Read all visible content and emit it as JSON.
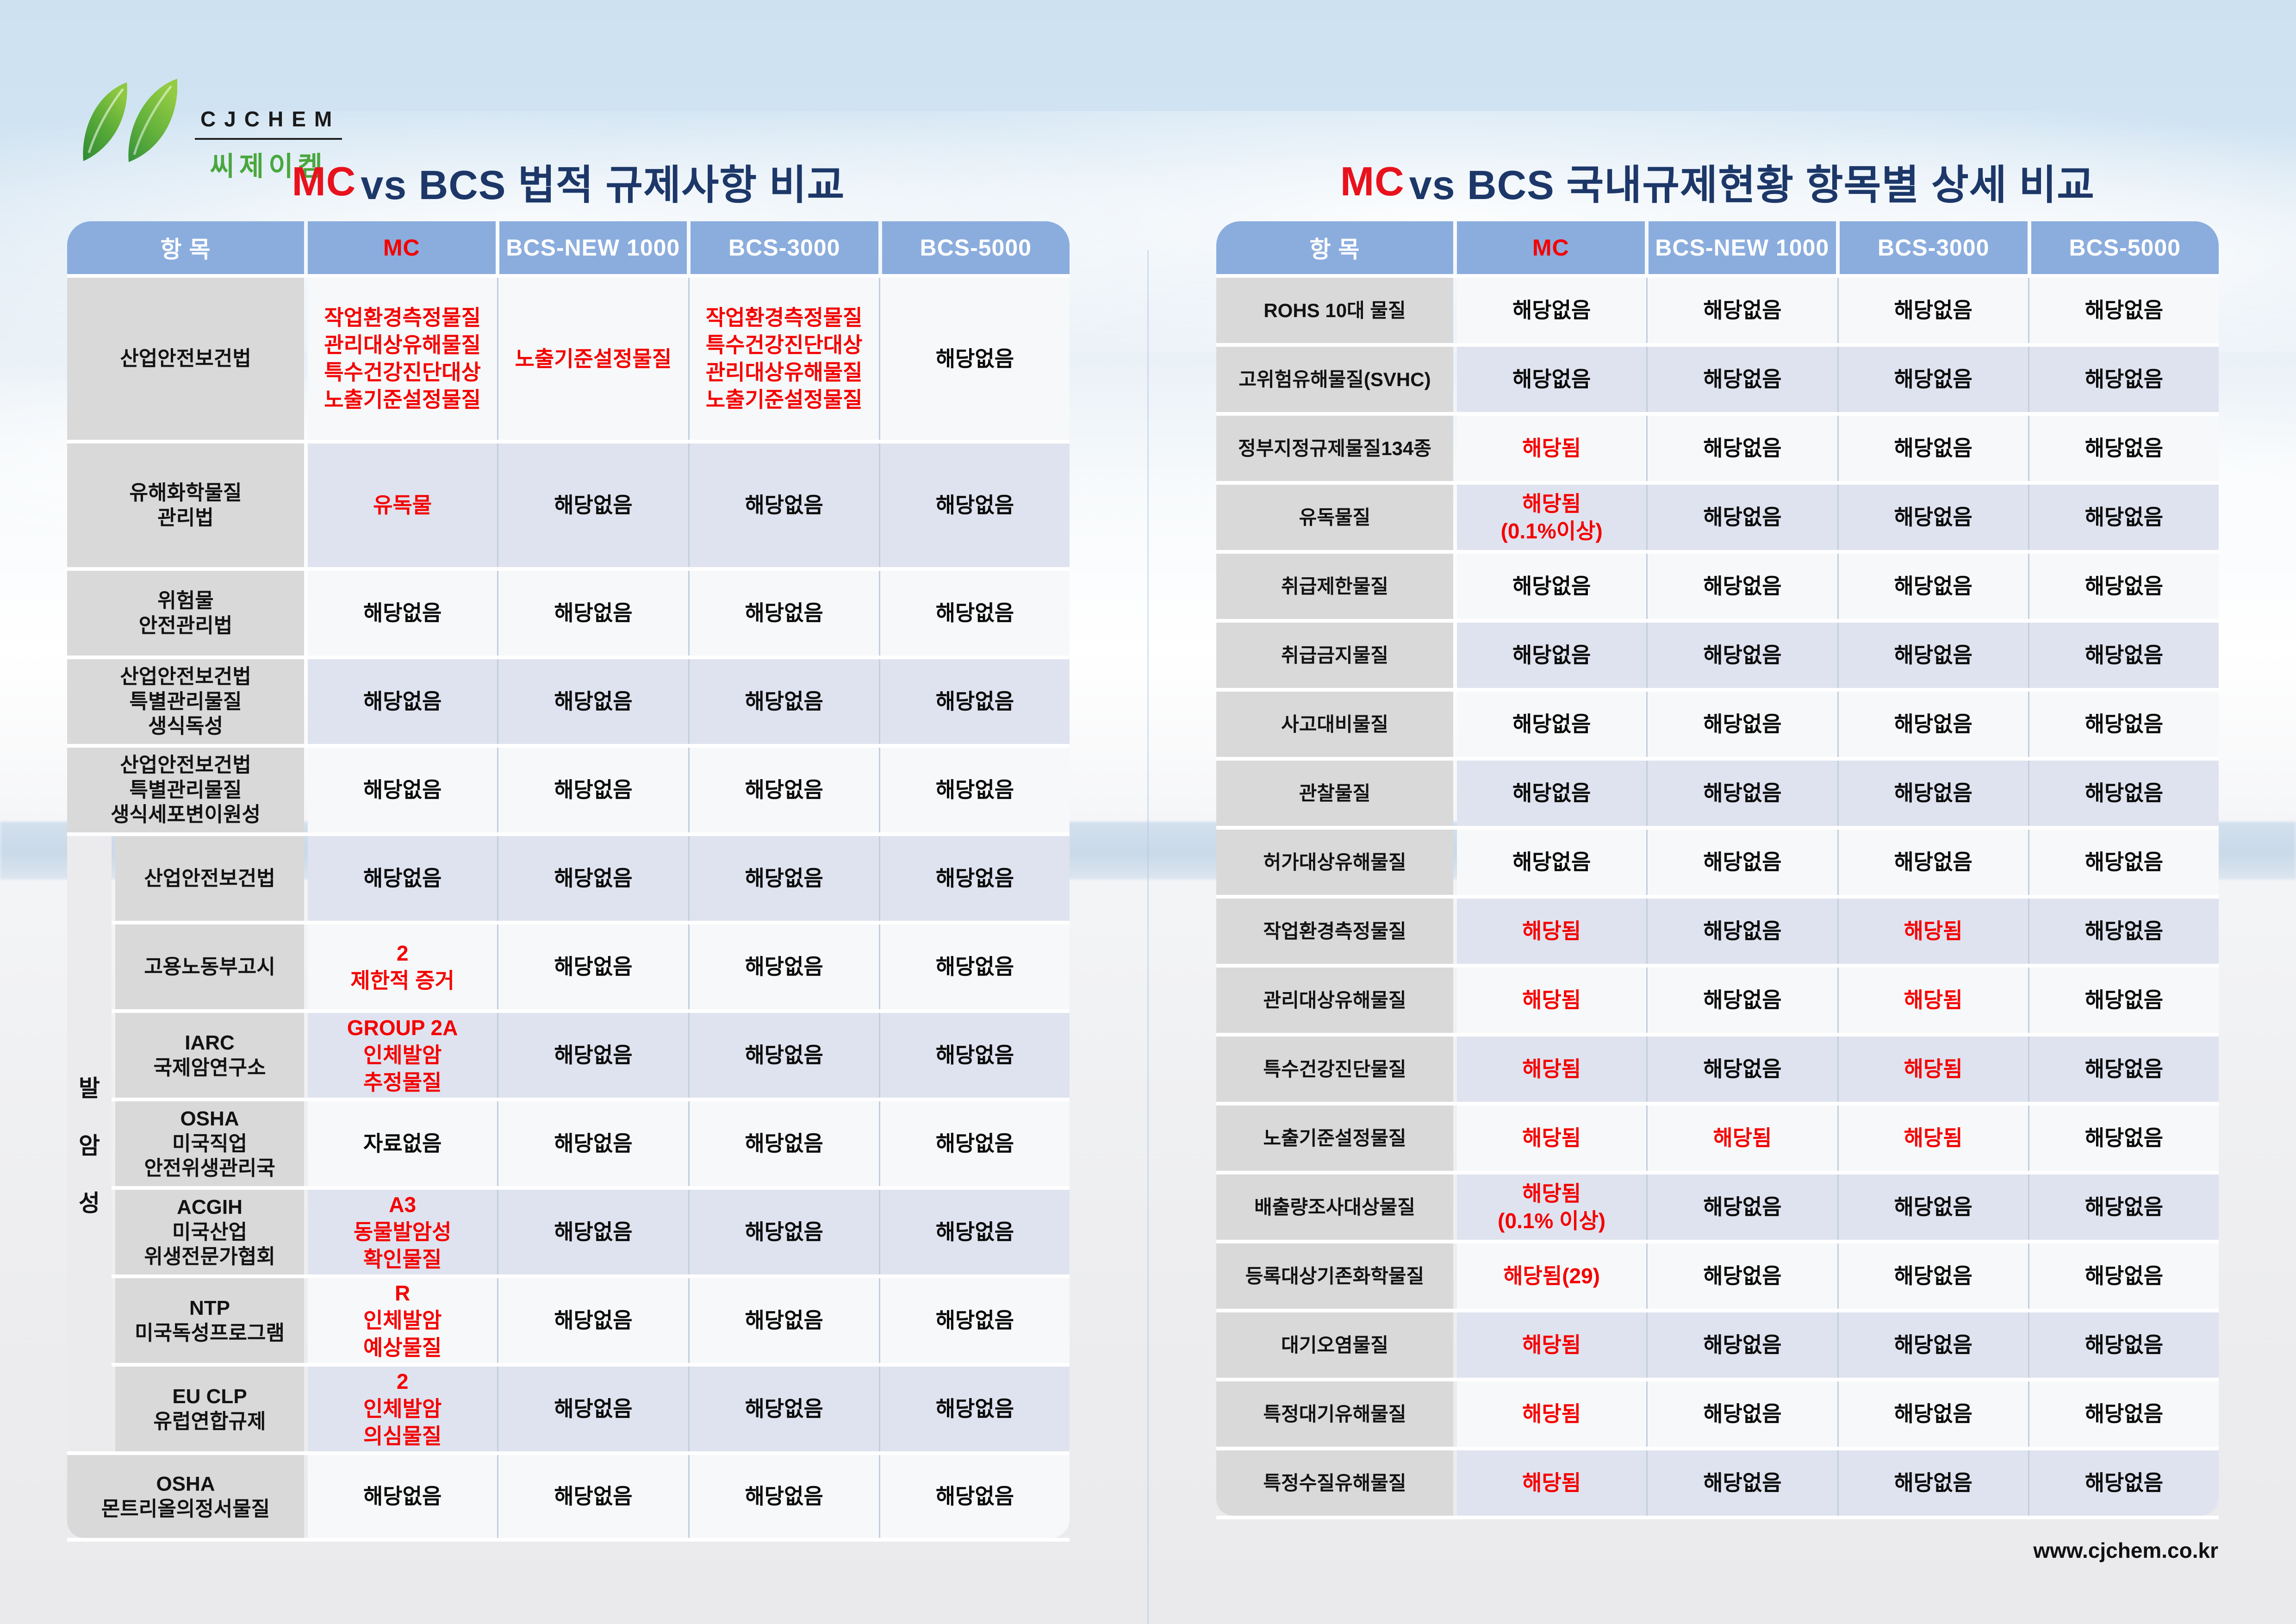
{
  "logo": {
    "company_en": "CJCHEM",
    "company_ko": "씨제이켐"
  },
  "footer": {
    "url": "www.cjchem.co.kr"
  },
  "colors": {
    "header_blue": "#8badde",
    "label_gray": "#d9d9d9",
    "stripe_blue": "#dfe3ef",
    "stripe_white": "#f7f8f9",
    "value_red": "#f40000",
    "title_navy": "#1c3768",
    "title_red": "#e8121d"
  },
  "left_table": {
    "title": {
      "mc": "MC",
      "rest": " vs BCS 법적 규제사항 비교"
    },
    "headers": [
      "항 목",
      "MC",
      "BCS-NEW 1000",
      "BCS-3000",
      "BCS-5000"
    ],
    "group_label": "발암성",
    "rows": [
      {
        "label": [
          "산업안전보건법"
        ],
        "group": false,
        "cells": [
          {
            "lines": [
              "작업환경측정물질",
              "관리대상유해물질",
              "특수건강진단대상",
              "노출기준설정물질"
            ],
            "red": true
          },
          {
            "lines": [
              "노출기준설정물질"
            ],
            "red": true
          },
          {
            "lines": [
              "작업환경측정물질",
              "특수건강진단대상",
              "관리대상유해물질",
              "노출기준설정물질"
            ],
            "red": true
          },
          {
            "lines": [
              "해당없음"
            ],
            "red": false
          }
        ]
      },
      {
        "label": [
          "유해화학물질",
          "관리법"
        ],
        "group": false,
        "cells": [
          {
            "lines": [
              "유독물"
            ],
            "red": true
          },
          {
            "lines": [
              "해당없음"
            ],
            "red": false
          },
          {
            "lines": [
              "해당없음"
            ],
            "red": false
          },
          {
            "lines": [
              "해당없음"
            ],
            "red": false
          }
        ]
      },
      {
        "label": [
          "위험물",
          "안전관리법"
        ],
        "group": false,
        "cells": [
          {
            "lines": [
              "해당없음"
            ],
            "red": false
          },
          {
            "lines": [
              "해당없음"
            ],
            "red": false
          },
          {
            "lines": [
              "해당없음"
            ],
            "red": false
          },
          {
            "lines": [
              "해당없음"
            ],
            "red": false
          }
        ]
      },
      {
        "label": [
          "산업안전보건법",
          "특별관리물질",
          "생식독성"
        ],
        "group": false,
        "cells": [
          {
            "lines": [
              "해당없음"
            ],
            "red": false
          },
          {
            "lines": [
              "해당없음"
            ],
            "red": false
          },
          {
            "lines": [
              "해당없음"
            ],
            "red": false
          },
          {
            "lines": [
              "해당없음"
            ],
            "red": false
          }
        ]
      },
      {
        "label": [
          "산업안전보건법",
          "특별관리물질",
          "생식세포변이원성"
        ],
        "group": false,
        "cells": [
          {
            "lines": [
              "해당없음"
            ],
            "red": false
          },
          {
            "lines": [
              "해당없음"
            ],
            "red": false
          },
          {
            "lines": [
              "해당없음"
            ],
            "red": false
          },
          {
            "lines": [
              "해당없음"
            ],
            "red": false
          }
        ]
      },
      {
        "label": [
          "산업안전보건법"
        ],
        "group": true,
        "cells": [
          {
            "lines": [
              "해당없음"
            ],
            "red": false
          },
          {
            "lines": [
              "해당없음"
            ],
            "red": false
          },
          {
            "lines": [
              "해당없음"
            ],
            "red": false
          },
          {
            "lines": [
              "해당없음"
            ],
            "red": false
          }
        ]
      },
      {
        "label": [
          "고용노동부고시"
        ],
        "group": true,
        "cells": [
          {
            "lines": [
              "2",
              "제한적 증거"
            ],
            "red": true
          },
          {
            "lines": [
              "해당없음"
            ],
            "red": false
          },
          {
            "lines": [
              "해당없음"
            ],
            "red": false
          },
          {
            "lines": [
              "해당없음"
            ],
            "red": false
          }
        ]
      },
      {
        "label": [
          "IARC",
          "국제암연구소"
        ],
        "group": true,
        "cells": [
          {
            "lines": [
              "GROUP 2A",
              "인체발암",
              "추정물질"
            ],
            "red": true
          },
          {
            "lines": [
              "해당없음"
            ],
            "red": false
          },
          {
            "lines": [
              "해당없음"
            ],
            "red": false
          },
          {
            "lines": [
              "해당없음"
            ],
            "red": false
          }
        ]
      },
      {
        "label": [
          "OSHA",
          "미국직업",
          "안전위생관리국"
        ],
        "group": true,
        "cells": [
          {
            "lines": [
              "자료없음"
            ],
            "red": false
          },
          {
            "lines": [
              "해당없음"
            ],
            "red": false
          },
          {
            "lines": [
              "해당없음"
            ],
            "red": false
          },
          {
            "lines": [
              "해당없음"
            ],
            "red": false
          }
        ]
      },
      {
        "label": [
          "ACGIH",
          "미국산업",
          "위생전문가협회"
        ],
        "group": true,
        "cells": [
          {
            "lines": [
              "A3",
              "동물발암성",
              "확인물질"
            ],
            "red": true
          },
          {
            "lines": [
              "해당없음"
            ],
            "red": false
          },
          {
            "lines": [
              "해당없음"
            ],
            "red": false
          },
          {
            "lines": [
              "해당없음"
            ],
            "red": false
          }
        ]
      },
      {
        "label": [
          "NTP",
          "미국독성프로그램"
        ],
        "group": true,
        "cells": [
          {
            "lines": [
              "R",
              "인체발암",
              "예상물질"
            ],
            "red": true
          },
          {
            "lines": [
              "해당없음"
            ],
            "red": false
          },
          {
            "lines": [
              "해당없음"
            ],
            "red": false
          },
          {
            "lines": [
              "해당없음"
            ],
            "red": false
          }
        ]
      },
      {
        "label": [
          "EU CLP",
          "유럽연합규제"
        ],
        "group": true,
        "cells": [
          {
            "lines": [
              "2",
              "인체발암",
              "의심물질"
            ],
            "red": true
          },
          {
            "lines": [
              "해당없음"
            ],
            "red": false
          },
          {
            "lines": [
              "해당없음"
            ],
            "red": false
          },
          {
            "lines": [
              "해당없음"
            ],
            "red": false
          }
        ]
      },
      {
        "label": [
          "OSHA",
          "몬트리올의정서물질"
        ],
        "group": false,
        "cells": [
          {
            "lines": [
              "해당없음"
            ],
            "red": false
          },
          {
            "lines": [
              "해당없음"
            ],
            "red": false
          },
          {
            "lines": [
              "해당없음"
            ],
            "red": false
          },
          {
            "lines": [
              "해당없음"
            ],
            "red": false
          }
        ]
      }
    ]
  },
  "right_table": {
    "title": {
      "mc": "MC",
      "rest": " vs BCS 국내규제현황 항목별 상세 비교"
    },
    "headers": [
      "항 목",
      "MC",
      "BCS-NEW 1000",
      "BCS-3000",
      "BCS-5000"
    ],
    "group_label": "",
    "rows": [
      {
        "label": [
          "ROHS 10대 물질"
        ],
        "group": false,
        "cells": [
          {
            "lines": [
              "해당없음"
            ],
            "red": false
          },
          {
            "lines": [
              "해당없음"
            ],
            "red": false
          },
          {
            "lines": [
              "해당없음"
            ],
            "red": false
          },
          {
            "lines": [
              "해당없음"
            ],
            "red": false
          }
        ]
      },
      {
        "label": [
          "고위험유해물질(SVHC)"
        ],
        "group": false,
        "cells": [
          {
            "lines": [
              "해당없음"
            ],
            "red": false
          },
          {
            "lines": [
              "해당없음"
            ],
            "red": false
          },
          {
            "lines": [
              "해당없음"
            ],
            "red": false
          },
          {
            "lines": [
              "해당없음"
            ],
            "red": false
          }
        ]
      },
      {
        "label": [
          "정부지정규제물질134종"
        ],
        "group": false,
        "cells": [
          {
            "lines": [
              "해당됨"
            ],
            "red": true
          },
          {
            "lines": [
              "해당없음"
            ],
            "red": false
          },
          {
            "lines": [
              "해당없음"
            ],
            "red": false
          },
          {
            "lines": [
              "해당없음"
            ],
            "red": false
          }
        ]
      },
      {
        "label": [
          "유독물질"
        ],
        "group": false,
        "cells": [
          {
            "lines": [
              "해당됨",
              "(0.1%이상)"
            ],
            "red": true
          },
          {
            "lines": [
              "해당없음"
            ],
            "red": false
          },
          {
            "lines": [
              "해당없음"
            ],
            "red": false
          },
          {
            "lines": [
              "해당없음"
            ],
            "red": false
          }
        ]
      },
      {
        "label": [
          "취급제한물질"
        ],
        "group": false,
        "cells": [
          {
            "lines": [
              "해당없음"
            ],
            "red": false
          },
          {
            "lines": [
              "해당없음"
            ],
            "red": false
          },
          {
            "lines": [
              "해당없음"
            ],
            "red": false
          },
          {
            "lines": [
              "해당없음"
            ],
            "red": false
          }
        ]
      },
      {
        "label": [
          "취급금지물질"
        ],
        "group": false,
        "cells": [
          {
            "lines": [
              "해당없음"
            ],
            "red": false
          },
          {
            "lines": [
              "해당없음"
            ],
            "red": false
          },
          {
            "lines": [
              "해당없음"
            ],
            "red": false
          },
          {
            "lines": [
              "해당없음"
            ],
            "red": false
          }
        ]
      },
      {
        "label": [
          "사고대비물질"
        ],
        "group": false,
        "cells": [
          {
            "lines": [
              "해당없음"
            ],
            "red": false
          },
          {
            "lines": [
              "해당없음"
            ],
            "red": false
          },
          {
            "lines": [
              "해당없음"
            ],
            "red": false
          },
          {
            "lines": [
              "해당없음"
            ],
            "red": false
          }
        ]
      },
      {
        "label": [
          "관찰물질"
        ],
        "group": false,
        "cells": [
          {
            "lines": [
              "해당없음"
            ],
            "red": false
          },
          {
            "lines": [
              "해당없음"
            ],
            "red": false
          },
          {
            "lines": [
              "해당없음"
            ],
            "red": false
          },
          {
            "lines": [
              "해당없음"
            ],
            "red": false
          }
        ]
      },
      {
        "label": [
          "허가대상유해물질"
        ],
        "group": false,
        "cells": [
          {
            "lines": [
              "해당없음"
            ],
            "red": false
          },
          {
            "lines": [
              "해당없음"
            ],
            "red": false
          },
          {
            "lines": [
              "해당없음"
            ],
            "red": false
          },
          {
            "lines": [
              "해당없음"
            ],
            "red": false
          }
        ]
      },
      {
        "label": [
          "작업환경측정물질"
        ],
        "group": false,
        "cells": [
          {
            "lines": [
              "해당됨"
            ],
            "red": true
          },
          {
            "lines": [
              "해당없음"
            ],
            "red": false
          },
          {
            "lines": [
              "해당됨"
            ],
            "red": true
          },
          {
            "lines": [
              "해당없음"
            ],
            "red": false
          }
        ]
      },
      {
        "label": [
          "관리대상유해물질"
        ],
        "group": false,
        "cells": [
          {
            "lines": [
              "해당됨"
            ],
            "red": true
          },
          {
            "lines": [
              "해당없음"
            ],
            "red": false
          },
          {
            "lines": [
              "해당됨"
            ],
            "red": true
          },
          {
            "lines": [
              "해당없음"
            ],
            "red": false
          }
        ]
      },
      {
        "label": [
          "특수건강진단물질"
        ],
        "group": false,
        "cells": [
          {
            "lines": [
              "해당됨"
            ],
            "red": true
          },
          {
            "lines": [
              "해당없음"
            ],
            "red": false
          },
          {
            "lines": [
              "해당됨"
            ],
            "red": true
          },
          {
            "lines": [
              "해당없음"
            ],
            "red": false
          }
        ]
      },
      {
        "label": [
          "노출기준설정물질"
        ],
        "group": false,
        "cells": [
          {
            "lines": [
              "해당됨"
            ],
            "red": true
          },
          {
            "lines": [
              "해당됨"
            ],
            "red": true
          },
          {
            "lines": [
              "해당됨"
            ],
            "red": true
          },
          {
            "lines": [
              "해당없음"
            ],
            "red": false
          }
        ]
      },
      {
        "label": [
          "배출량조사대상물질"
        ],
        "group": false,
        "cells": [
          {
            "lines": [
              "해당됨",
              "(0.1% 이상)"
            ],
            "red": true
          },
          {
            "lines": [
              "해당없음"
            ],
            "red": false
          },
          {
            "lines": [
              "해당없음"
            ],
            "red": false
          },
          {
            "lines": [
              "해당없음"
            ],
            "red": false
          }
        ]
      },
      {
        "label": [
          "등록대상기존화학물질"
        ],
        "group": false,
        "cells": [
          {
            "lines": [
              "해당됨(29)"
            ],
            "red": true
          },
          {
            "lines": [
              "해당없음"
            ],
            "red": false
          },
          {
            "lines": [
              "해당없음"
            ],
            "red": false
          },
          {
            "lines": [
              "해당없음"
            ],
            "red": false
          }
        ]
      },
      {
        "label": [
          "대기오염물질"
        ],
        "group": false,
        "cells": [
          {
            "lines": [
              "해당됨"
            ],
            "red": true
          },
          {
            "lines": [
              "해당없음"
            ],
            "red": false
          },
          {
            "lines": [
              "해당없음"
            ],
            "red": false
          },
          {
            "lines": [
              "해당없음"
            ],
            "red": false
          }
        ]
      },
      {
        "label": [
          "특정대기유해물질"
        ],
        "group": false,
        "cells": [
          {
            "lines": [
              "해당됨"
            ],
            "red": true
          },
          {
            "lines": [
              "해당없음"
            ],
            "red": false
          },
          {
            "lines": [
              "해당없음"
            ],
            "red": false
          },
          {
            "lines": [
              "해당없음"
            ],
            "red": false
          }
        ]
      },
      {
        "label": [
          "특정수질유해물질"
        ],
        "group": false,
        "cells": [
          {
            "lines": [
              "해당됨"
            ],
            "red": true
          },
          {
            "lines": [
              "해당없음"
            ],
            "red": false
          },
          {
            "lines": [
              "해당없음"
            ],
            "red": false
          },
          {
            "lines": [
              "해당없음"
            ],
            "red": false
          }
        ]
      }
    ]
  }
}
